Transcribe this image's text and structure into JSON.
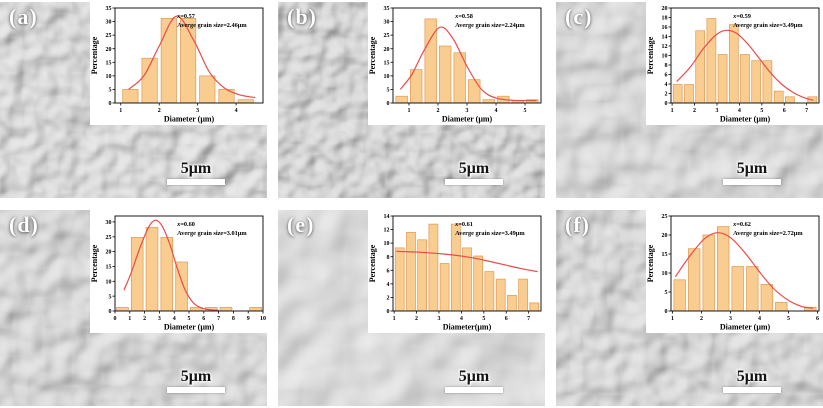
{
  "figure": {
    "panels": [
      {
        "label": "(a)",
        "scale_label": "5μm"
      },
      {
        "label": "(b)",
        "scale_label": "5μm"
      },
      {
        "label": "(c)",
        "scale_label": "5μm"
      },
      {
        "label": "(d)",
        "scale_label": "5μm"
      },
      {
        "label": "(e)",
        "scale_label": "5μm"
      },
      {
        "label": "(f)",
        "scale_label": "5μm"
      }
    ]
  },
  "colors": {
    "bar_fill": "#F9CC8F",
    "bar_edge": "#DD9955",
    "curve": "#EA4B4B",
    "axis": "#000000"
  },
  "chart_data": [
    {
      "type": "bar",
      "xlabel": "Diameter (μm)",
      "ylabel": "Percentage",
      "annotation_x": "x=0.57",
      "annotation_avg": "Averge grain size=2.46μm",
      "bin_start": 1.0,
      "bin_width": 0.5,
      "values": [
        5,
        16.5,
        31.2,
        31.2,
        10,
        5,
        1.2
      ],
      "xticks": [
        1,
        2,
        3,
        4
      ],
      "yticks": [
        0,
        5,
        10,
        15,
        20,
        25,
        30,
        35
      ],
      "xlim": [
        0.85,
        4.7
      ],
      "ylim": [
        0,
        35
      ],
      "curve": [
        [
          1.2,
          5
        ],
        [
          1.6,
          10
        ],
        [
          2.0,
          21
        ],
        [
          2.45,
          32
        ],
        [
          2.9,
          23
        ],
        [
          3.3,
          11.5
        ],
        [
          3.7,
          5.5
        ],
        [
          4.1,
          3
        ],
        [
          4.5,
          2
        ]
      ]
    },
    {
      "type": "bar",
      "xlabel": "Diameter (μm)",
      "ylabel": "Percentage",
      "annotation_x": "x=0.58",
      "annotation_avg": "Averge grain size=2.24μm",
      "bin_start": 0.5,
      "bin_width": 0.5,
      "values": [
        2.5,
        12.3,
        31,
        21,
        18.5,
        8.6,
        1.2,
        2.5,
        1,
        1.2
      ],
      "xticks": [
        1,
        2,
        3,
        4,
        5
      ],
      "yticks": [
        0,
        5,
        10,
        15,
        20,
        25,
        30,
        35
      ],
      "xlim": [
        0.45,
        5.55
      ],
      "ylim": [
        0,
        35
      ],
      "curve": [
        [
          0.7,
          5
        ],
        [
          1.1,
          10.5
        ],
        [
          1.5,
          19
        ],
        [
          2.05,
          27.8
        ],
        [
          2.5,
          24
        ],
        [
          3.0,
          13.5
        ],
        [
          3.5,
          5
        ],
        [
          4.0,
          1.8
        ],
        [
          4.6,
          1
        ],
        [
          5.4,
          0.9
        ]
      ]
    },
    {
      "type": "bar",
      "xlabel": "Diameter (μm)",
      "ylabel": "Percentage",
      "annotation_x": "x=0.59",
      "annotation_avg": "Averge grain size=3.49μm",
      "bin_start": 1.0,
      "bin_width": 0.5,
      "values": [
        3.9,
        3.9,
        15.2,
        17.8,
        10.2,
        16.5,
        10.2,
        8.9,
        8.9,
        2.5,
        1.3,
        0,
        1.3
      ],
      "xticks": [
        1,
        2,
        3,
        4,
        5,
        6,
        7
      ],
      "yticks": [
        0,
        2,
        4,
        6,
        8,
        10,
        12,
        14,
        16,
        18,
        20
      ],
      "xlim": [
        0.95,
        7.55
      ],
      "ylim": [
        0,
        20
      ],
      "curve": [
        [
          1.2,
          4.5
        ],
        [
          1.8,
          7.5
        ],
        [
          2.4,
          11.5
        ],
        [
          3.0,
          14.5
        ],
        [
          3.45,
          15.3
        ],
        [
          3.9,
          14.6
        ],
        [
          4.4,
          12.3
        ],
        [
          4.9,
          9.3
        ],
        [
          5.4,
          6.3
        ],
        [
          5.9,
          3.9
        ],
        [
          6.4,
          2.2
        ],
        [
          6.9,
          1.1
        ],
        [
          7.3,
          0.6
        ]
      ]
    },
    {
      "type": "bar",
      "xlabel": "Diameter (μm)",
      "ylabel": "Percentage",
      "annotation_x": "x=0.60",
      "annotation_avg": "Averge grain size=3.01μm",
      "bin_start": 0,
      "bin_width": 1,
      "values": [
        1.2,
        24.8,
        28.2,
        24.8,
        16.5,
        1.2,
        1.2,
        1.2,
        0,
        1.2
      ],
      "xticks": [
        0,
        1,
        2,
        3,
        4,
        5,
        6,
        7,
        8,
        9,
        10
      ],
      "yticks": [
        0,
        5,
        10,
        15,
        20,
        25,
        30
      ],
      "xlim": [
        0,
        10
      ],
      "ylim": [
        0,
        32
      ],
      "curve": [
        [
          0.6,
          7
        ],
        [
          1.1,
          13
        ],
        [
          1.7,
          21.5
        ],
        [
          2.3,
          28.5
        ],
        [
          2.75,
          30.6
        ],
        [
          3.2,
          28.5
        ],
        [
          3.7,
          22.5
        ],
        [
          4.2,
          14.5
        ],
        [
          4.7,
          7.5
        ],
        [
          5.2,
          3.3
        ],
        [
          5.7,
          1.3
        ],
        [
          6.3,
          0.5
        ],
        [
          7.0,
          0.2
        ]
      ]
    },
    {
      "type": "bar",
      "xlabel": "Diameter(μm)",
      "ylabel": "Percentage",
      "annotation_x": "x=0.61",
      "annotation_avg": "Averge grain size=3.49μm",
      "bin_start": 1.0,
      "bin_width": 0.5,
      "values": [
        9.3,
        11.6,
        10.5,
        12.8,
        7,
        12.8,
        9.3,
        8.1,
        5.8,
        4.7,
        2.3,
        4.7,
        1.2
      ],
      "xticks": [
        1,
        2,
        3,
        4,
        5,
        6,
        7
      ],
      "yticks": [
        0,
        2,
        4,
        6,
        8,
        10,
        12,
        14
      ],
      "xlim": [
        0.95,
        7.55
      ],
      "ylim": [
        0,
        14
      ],
      "curve": [
        [
          1.1,
          8.8
        ],
        [
          2.2,
          8.65
        ],
        [
          3.2,
          8.4
        ],
        [
          4.2,
          8.0
        ],
        [
          5.0,
          7.5
        ],
        [
          5.8,
          6.9
        ],
        [
          6.6,
          6.3
        ],
        [
          7.4,
          5.8
        ]
      ]
    },
    {
      "type": "bar",
      "xlabel": "Diameter (μm)",
      "ylabel": "Percentage",
      "annotation_x": "x=0.62",
      "annotation_avg": "Averge grain size=2.72μm",
      "bin_start": 1.0,
      "bin_width": 0.5,
      "values": [
        8.2,
        16.4,
        20,
        22.2,
        11.7,
        11.7,
        7,
        2.3,
        0,
        1
      ],
      "xticks": [
        1,
        2,
        3,
        4,
        5,
        6
      ],
      "yticks": [
        0,
        5,
        10,
        15,
        20,
        25
      ],
      "xlim": [
        0.95,
        6.05
      ],
      "ylim": [
        0,
        25
      ],
      "curve": [
        [
          1.1,
          9
        ],
        [
          1.6,
          14.5
        ],
        [
          2.1,
          19
        ],
        [
          2.55,
          20.6
        ],
        [
          3.0,
          19.3
        ],
        [
          3.5,
          15.3
        ],
        [
          4.0,
          10.3
        ],
        [
          4.5,
          5.8
        ],
        [
          5.0,
          2.8
        ],
        [
          5.45,
          1.2
        ],
        [
          5.85,
          0.7
        ]
      ]
    }
  ]
}
